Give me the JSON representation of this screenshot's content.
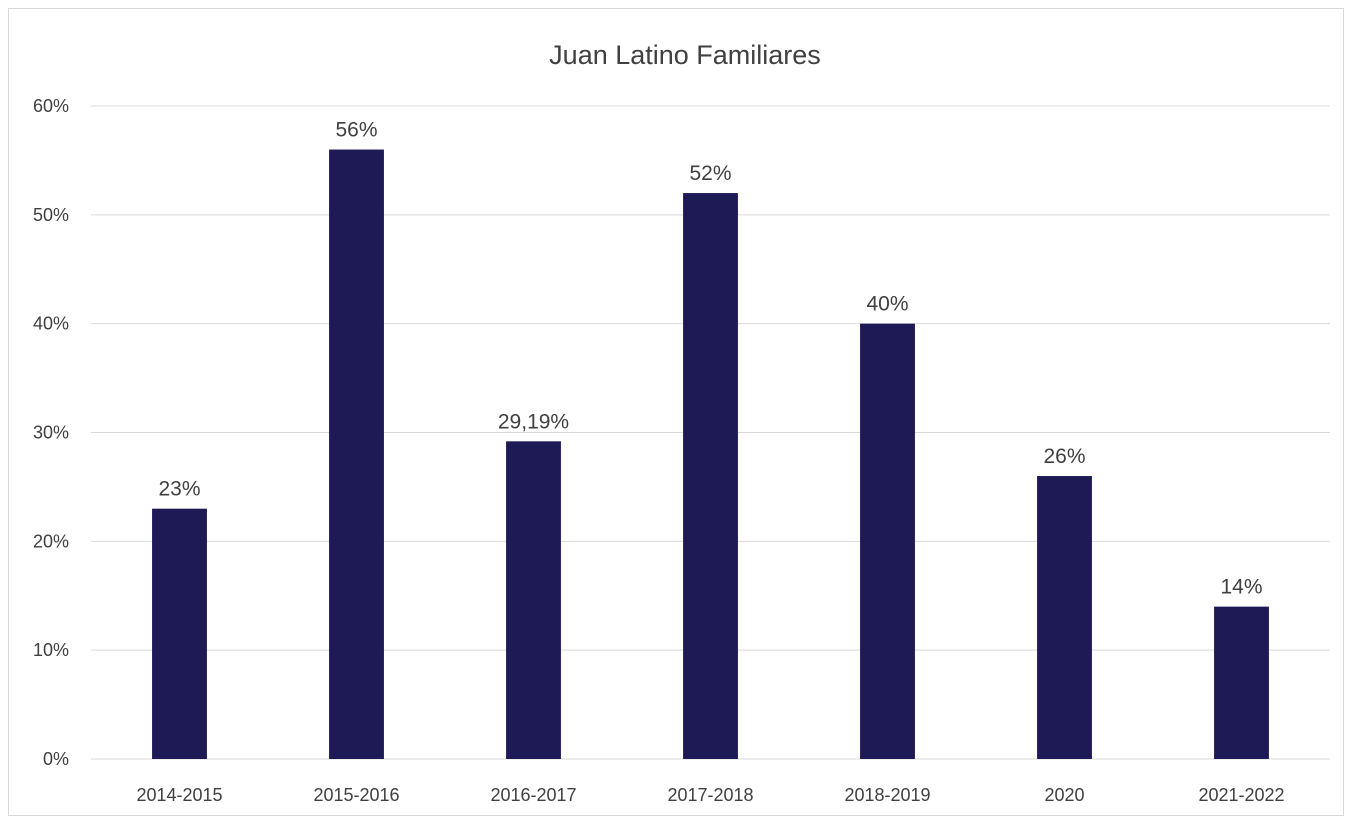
{
  "chart_data": {
    "type": "bar",
    "title": "Juan Latino Familiares",
    "categories": [
      "2014-2015",
      "2015-2016",
      "2016-2017",
      "2017-2018",
      "2018-2019",
      "2020",
      "2021-2022"
    ],
    "values": [
      23,
      56,
      29.19,
      52,
      40,
      26,
      14
    ],
    "data_labels": [
      "23%",
      "56%",
      "29,19%",
      "52%",
      "40%",
      "26%",
      "14%"
    ],
    "y_ticks": [
      "0%",
      "10%",
      "20%",
      "30%",
      "40%",
      "50%",
      "60%"
    ],
    "ylim": [
      0,
      60
    ],
    "xlabel": "",
    "ylabel": "",
    "grid": true,
    "legend": "none",
    "bar_color": "#1e1a55"
  }
}
